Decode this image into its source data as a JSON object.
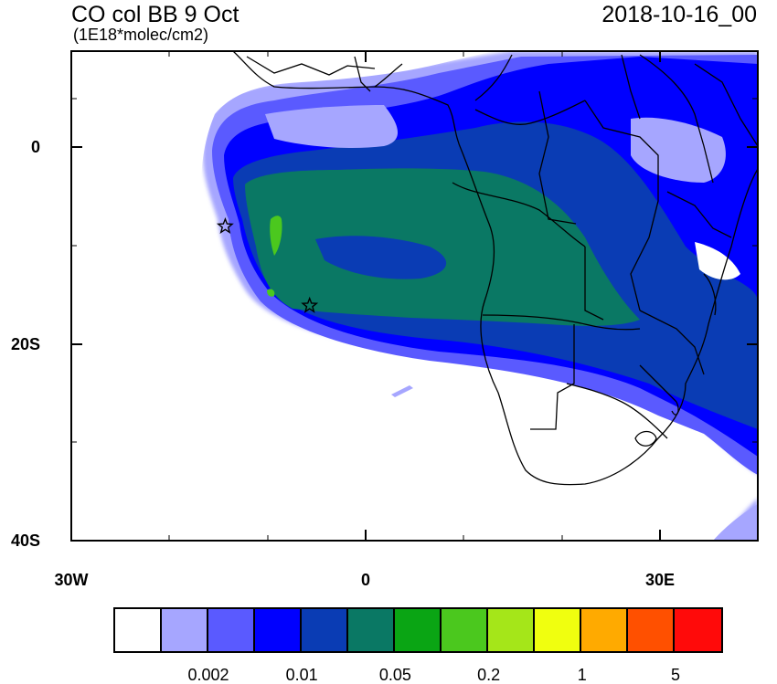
{
  "title": "CO col BB 9 Oct",
  "subtitle": "(1E18*molec/cm2)",
  "timestamp": "2018-10-16_00",
  "axes": {
    "y_ticks": [
      "0",
      "20S",
      "40S"
    ],
    "x_ticks": [
      "30W",
      "0",
      "30E"
    ]
  },
  "colorbar": {
    "colors": [
      "#ffffff",
      "#a6a6ff",
      "#5a5aff",
      "#0000ff",
      "#0a3cb4",
      "#0a7864",
      "#0aa514",
      "#4bc81e",
      "#a5e619",
      "#f0ff0f",
      "#ffaa00",
      "#ff5000",
      "#ff0a0a"
    ],
    "labels": [
      "0.002",
      "0.01",
      "0.05",
      "0.2",
      "1",
      "5"
    ]
  },
  "markers": [
    {
      "name": "star-marker",
      "lon": -14.3,
      "lat": -7.9
    },
    {
      "name": "star-marker",
      "lon": -5.7,
      "lat": -16.0
    }
  ],
  "map_extent": {
    "lon": [
      -30,
      40
    ],
    "lat": [
      -40,
      10
    ]
  }
}
